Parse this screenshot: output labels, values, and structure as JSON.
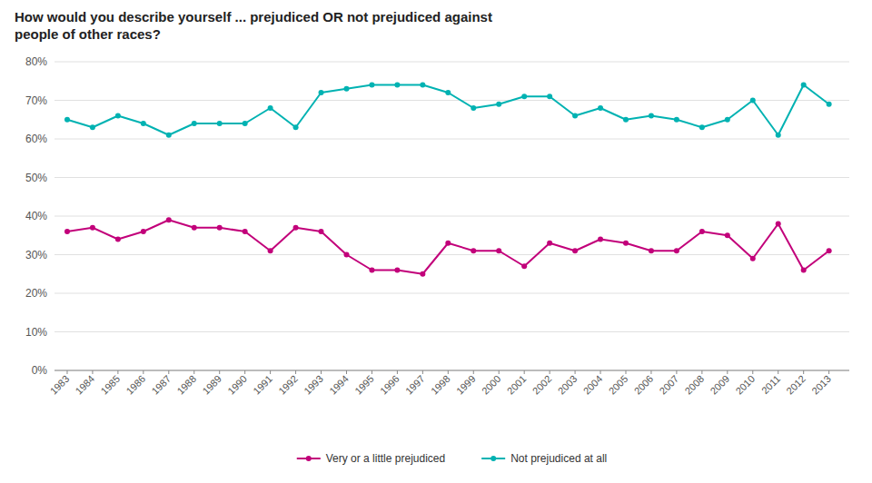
{
  "chart_data": {
    "type": "line",
    "title": "How would you describe yourself ... prejudiced OR not prejudiced against\npeople of other races?",
    "x": [
      1983,
      1984,
      1985,
      1986,
      1987,
      1988,
      1989,
      1990,
      1991,
      1992,
      1993,
      1994,
      1995,
      1996,
      1997,
      1998,
      1999,
      2000,
      2001,
      2002,
      2003,
      2004,
      2005,
      2006,
      2007,
      2008,
      2009,
      2010,
      2011,
      2012,
      2013
    ],
    "series": [
      {
        "name": "Not prejudiced at all",
        "color": "#00b2b2",
        "marker": "circle",
        "values": [
          65,
          63,
          66,
          64,
          61,
          64,
          64,
          64,
          68,
          63,
          72,
          73,
          74,
          74,
          74,
          72,
          68,
          69,
          71,
          71,
          66,
          68,
          65,
          66,
          65,
          63,
          65,
          70,
          61,
          74,
          69
        ]
      },
      {
        "name": "Very or a little prejudiced",
        "color": "#c2007a",
        "marker": "circle",
        "values": [
          36,
          37,
          34,
          36,
          39,
          37,
          37,
          36,
          31,
          37,
          36,
          30,
          26,
          26,
          25,
          33,
          31,
          31,
          27,
          33,
          31,
          34,
          33,
          31,
          31,
          36,
          35,
          29,
          38,
          26,
          31
        ]
      }
    ],
    "xlim": [
      1982.5,
      2013.8
    ],
    "xticks": [
      1983,
      1984,
      1985,
      1986,
      1987,
      1988,
      1989,
      1990,
      1991,
      1992,
      1993,
      1994,
      1995,
      1996,
      1997,
      1998,
      1999,
      2000,
      2001,
      2002,
      2003,
      2004,
      2005,
      2006,
      2007,
      2008,
      2009,
      2010,
      2011,
      2012,
      2013
    ],
    "ylim": [
      0,
      80
    ],
    "yticks": [
      {
        "value": 0,
        "label": "0%"
      },
      {
        "value": 10,
        "label": "10%"
      },
      {
        "value": 20,
        "label": "20%"
      },
      {
        "value": 30,
        "label": "30%"
      },
      {
        "value": 40,
        "label": "40%"
      },
      {
        "value": 50,
        "label": "50%"
      },
      {
        "value": 60,
        "label": "60%"
      },
      {
        "value": 70,
        "label": "70%"
      },
      {
        "value": 80,
        "label": "80%"
      }
    ],
    "grid": true,
    "legend": "bottom"
  }
}
